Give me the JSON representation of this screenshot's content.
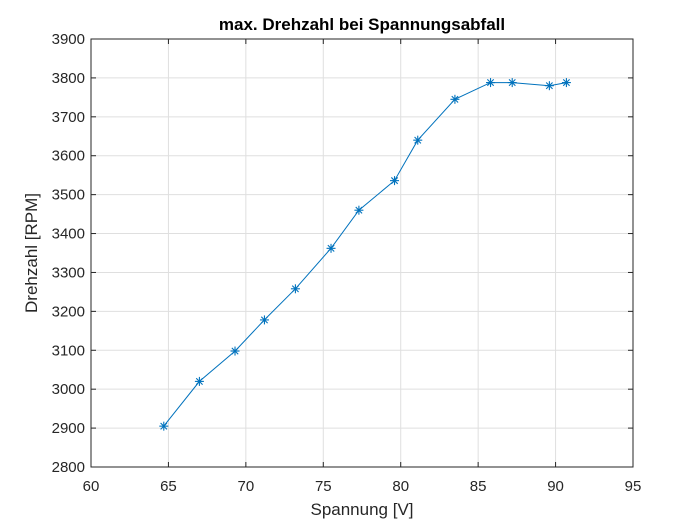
{
  "chart_data": {
    "type": "line",
    "title": "max. Drehzahl bei Spannungsabfall",
    "xlabel": "Spannung [V]",
    "ylabel": "Drehzahl [RPM]",
    "xlim": [
      60,
      95
    ],
    "ylim": [
      2800,
      3900
    ],
    "xticks": [
      60,
      65,
      70,
      75,
      80,
      85,
      90,
      95
    ],
    "yticks": [
      2800,
      2900,
      3000,
      3100,
      3200,
      3300,
      3400,
      3500,
      3600,
      3700,
      3800,
      3900
    ],
    "grid": true,
    "marker": "asterisk",
    "color": "#0072bd",
    "series": [
      {
        "x": [
          64.7,
          67.0,
          69.3,
          71.2,
          73.2,
          75.5,
          77.3,
          79.6,
          81.1,
          83.5,
          85.8,
          87.2,
          89.6,
          90.7
        ],
        "y": [
          2905,
          3020,
          3098,
          3178,
          3258,
          3362,
          3460,
          3536,
          3640,
          3745,
          3788,
          3788,
          3780,
          3788
        ]
      }
    ]
  }
}
